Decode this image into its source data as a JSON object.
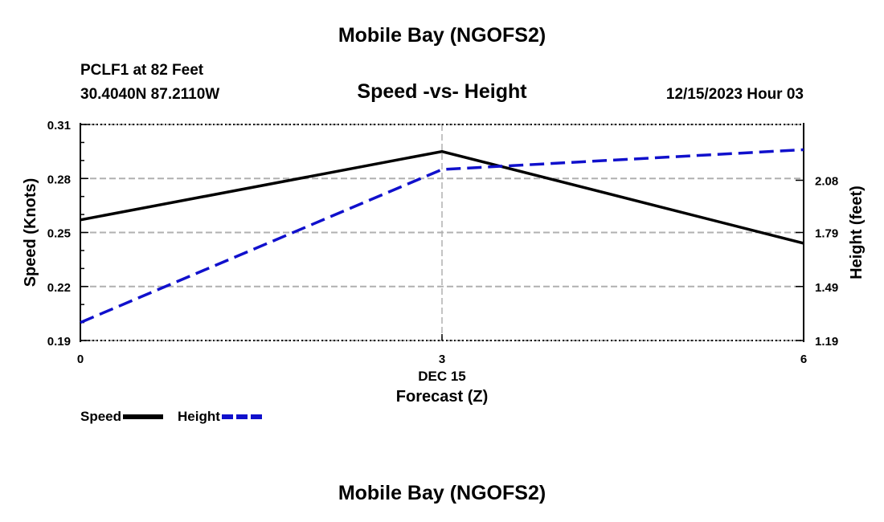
{
  "header": {
    "title": "Mobile Bay (NGOFS2)",
    "station": "PCLF1 at 82 Feet",
    "coords": "30.4040N  87.2110W",
    "subtitle": "Speed -vs- Height",
    "date": "12/15/2023 Hour 03"
  },
  "footer": {
    "title": "Mobile Bay (NGOFS2)"
  },
  "legend": {
    "speed_label": "Speed",
    "height_label": "Height"
  },
  "colors": {
    "speed": "#000000",
    "height": "#1010cc",
    "grid": "#b0b0b0"
  },
  "chart_data": {
    "type": "line",
    "title": "Speed -vs- Height",
    "x": [
      0,
      3,
      6
    ],
    "xlim": [
      0,
      6
    ],
    "x_tick_labels": [
      "0",
      "3",
      "6"
    ],
    "x_date_label": "DEC 15",
    "xlabel": "Forecast (Z)",
    "ylabel_left": "Speed (Knots)",
    "ylabel_right": "Height (feet)",
    "ylim_left": [
      0.19,
      0.31
    ],
    "ylim_right": [
      1.19,
      2.39
    ],
    "left_ticks": [
      0.19,
      0.22,
      0.25,
      0.28,
      0.31
    ],
    "left_tick_labels": [
      "0.19",
      "0.22",
      "0.25",
      "0.28",
      "0.31"
    ],
    "right_ticks": [
      1.19,
      1.49,
      1.79,
      2.08
    ],
    "right_tick_labels": [
      "1.19",
      "1.49",
      "1.79",
      "2.08"
    ],
    "grid": true,
    "series": [
      {
        "name": "Speed",
        "axis": "left",
        "style": "solid",
        "values": [
          0.257,
          0.295,
          0.244
        ]
      },
      {
        "name": "Height",
        "axis": "right",
        "style": "dashed",
        "values": [
          1.29,
          2.14,
          2.25
        ]
      }
    ]
  }
}
